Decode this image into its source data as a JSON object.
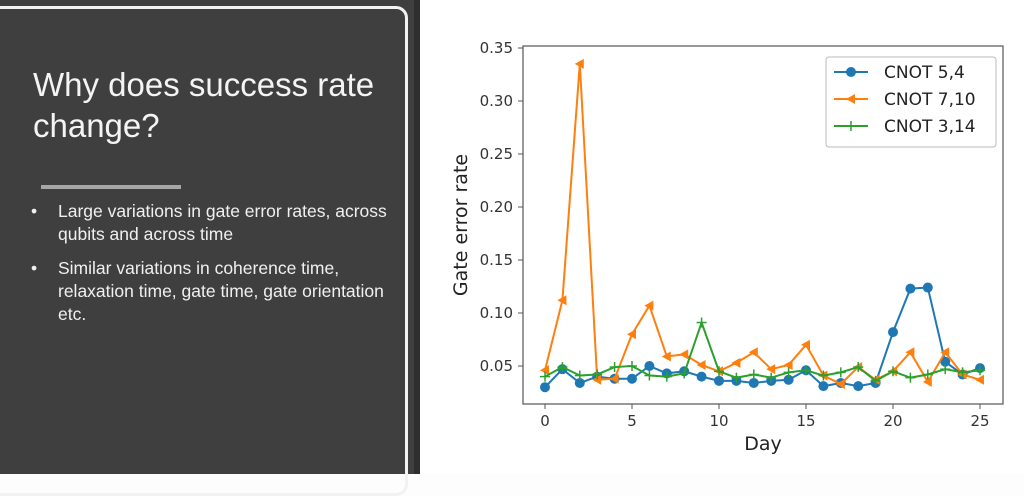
{
  "slide": {
    "title": "Why does success rate change?",
    "bullets": [
      "Large variations in gate error rates, across qubits and across time",
      "Similar variations in coherence time, relaxation time, gate time, gate orientation etc."
    ],
    "bullet_glyph": "•"
  },
  "chart_data": {
    "type": "line",
    "title": "",
    "xlabel": "Day",
    "ylabel": "Gate error rate",
    "xlim": [
      -1.2,
      26.3
    ],
    "ylim": [
      0.015,
      0.35
    ],
    "xticks": [
      0,
      5,
      10,
      15,
      20,
      25
    ],
    "yticks": [
      0.05,
      0.1,
      0.15,
      0.2,
      0.25,
      0.3,
      0.35
    ],
    "ytick_labels": [
      "0.05",
      "0.10",
      "0.15",
      "0.20",
      "0.25",
      "0.30",
      "0.35"
    ],
    "grid": false,
    "legend_position": "upper right",
    "x": [
      0,
      1,
      2,
      3,
      4,
      5,
      6,
      7,
      8,
      9,
      10,
      11,
      12,
      13,
      14,
      15,
      16,
      17,
      18,
      19,
      20,
      21,
      22,
      23,
      24,
      25
    ],
    "series": [
      {
        "name": "CNOT 5,4",
        "color": "#1f77b4",
        "marker": "circle",
        "values": [
          0.03,
          0.047,
          0.034,
          0.04,
          0.038,
          0.038,
          0.05,
          0.043,
          0.045,
          0.04,
          0.036,
          0.036,
          0.034,
          0.036,
          0.037,
          0.046,
          0.031,
          0.034,
          0.031,
          0.034,
          0.082,
          0.123,
          0.124,
          0.054,
          0.042,
          0.048
        ]
      },
      {
        "name": "CNOT 7,10",
        "color": "#ff7f0e",
        "marker": "triangle-left",
        "values": [
          0.046,
          0.112,
          0.335,
          0.037,
          0.038,
          0.08,
          0.107,
          0.059,
          0.061,
          0.051,
          0.045,
          0.053,
          0.063,
          0.047,
          0.051,
          0.07,
          0.041,
          0.033,
          0.049,
          0.037,
          0.045,
          0.063,
          0.035,
          0.063,
          0.042,
          0.037
        ]
      },
      {
        "name": "CNOT 3,14",
        "color": "#2ca02c",
        "marker": "plus",
        "values": [
          0.04,
          0.049,
          0.041,
          0.042,
          0.049,
          0.05,
          0.041,
          0.04,
          0.043,
          0.091,
          0.045,
          0.039,
          0.042,
          0.039,
          0.044,
          0.046,
          0.041,
          0.044,
          0.049,
          0.036,
          0.045,
          0.039,
          0.042,
          0.047,
          0.044,
          0.046
        ]
      }
    ]
  }
}
